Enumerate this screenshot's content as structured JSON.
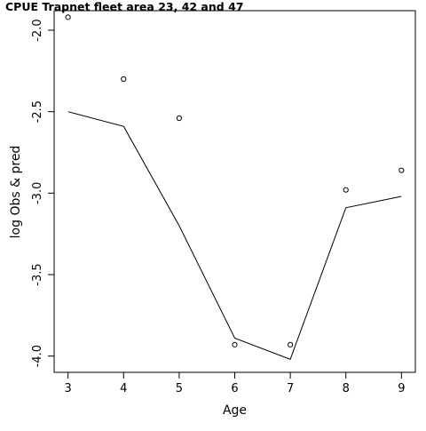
{
  "chart_data": {
    "type": "line",
    "title": "CPUE Trapnet fleet area 23, 42 and 47",
    "xlabel": "Age",
    "ylabel": "log Obs & pred",
    "x_ticks": [
      3,
      4,
      5,
      6,
      7,
      8,
      9
    ],
    "x_tick_labels": [
      "3",
      "4",
      "5",
      "6",
      "7",
      "8",
      "9"
    ],
    "y_ticks": [
      -2.0,
      -2.5,
      -3.0,
      -3.5,
      -4.0
    ],
    "y_tick_labels": [
      "-2.0",
      "-2.5",
      "-3.0",
      "-3.5",
      "-4.0"
    ],
    "xlim": [
      2.75,
      9.25
    ],
    "ylim": [
      -4.1,
      -1.88
    ],
    "grid": false,
    "observed": {
      "marker": "open-circle",
      "x": [
        3,
        4,
        5,
        6,
        7,
        8,
        9
      ],
      "y": [
        -1.92,
        -2.3,
        -2.54,
        -3.93,
        -3.93,
        -2.98,
        -2.86
      ]
    },
    "predicted": {
      "style": "line",
      "x": [
        3,
        4,
        5,
        6,
        7,
        8,
        9
      ],
      "y": [
        -2.5,
        -2.59,
        -3.2,
        -3.89,
        -4.02,
        -3.09,
        -3.02
      ]
    },
    "colors": {
      "line": "#000000",
      "points": "#000000",
      "background": "#ffffff"
    }
  }
}
